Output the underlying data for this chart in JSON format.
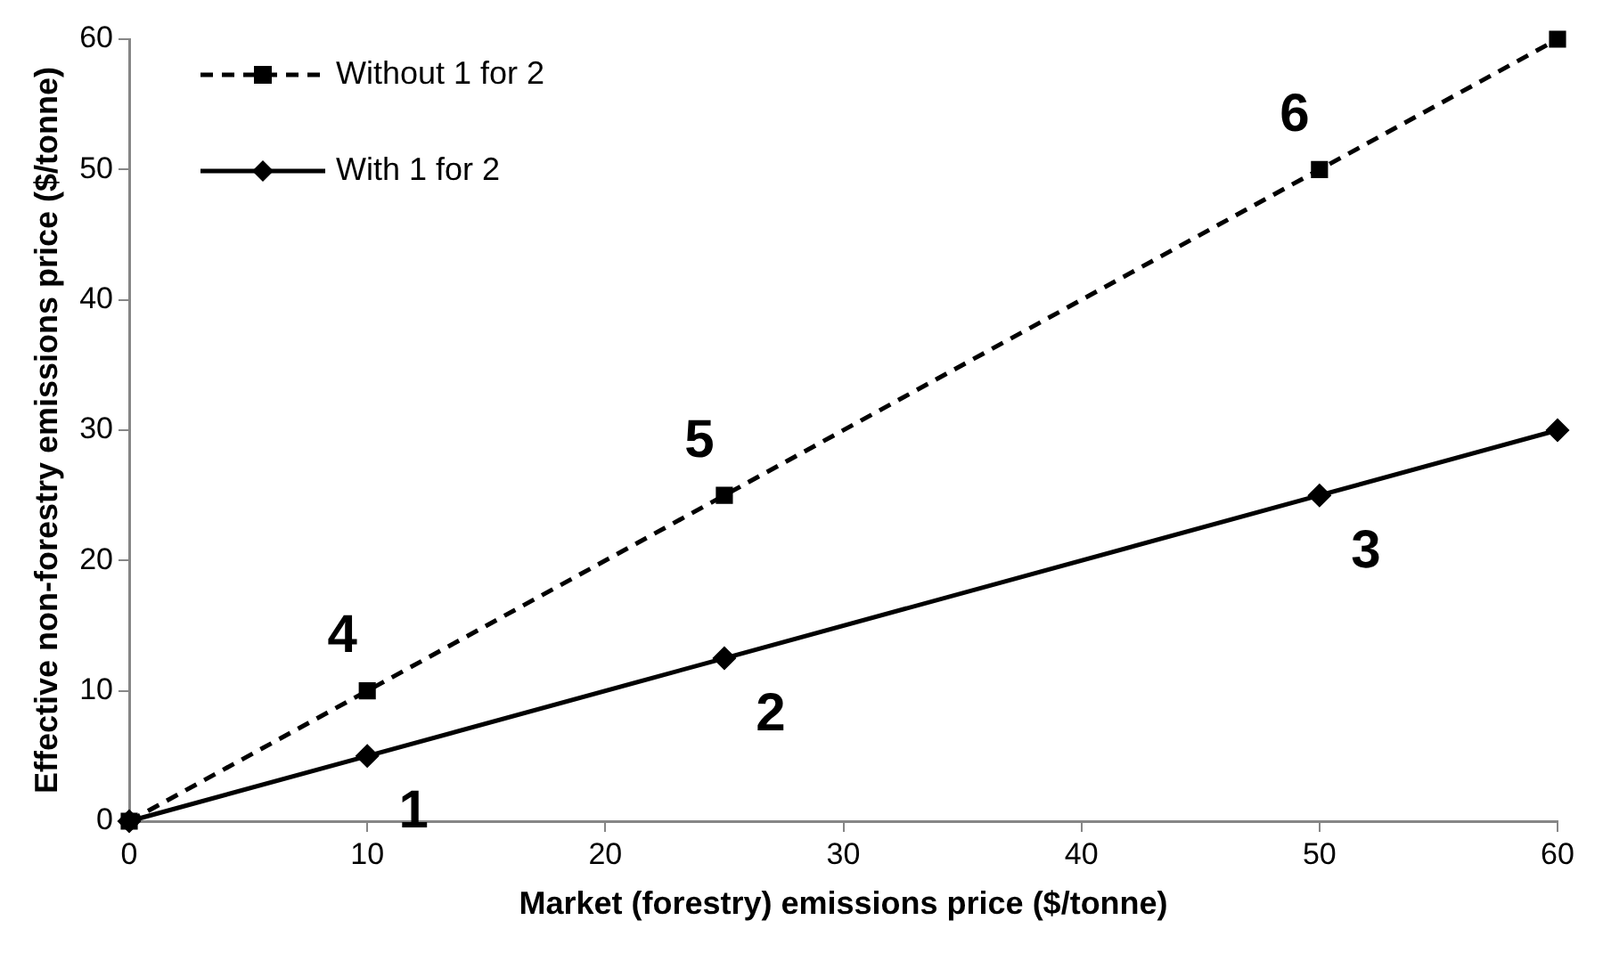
{
  "chart_data": {
    "type": "line",
    "xlabel": "Market (forestry) emissions price ($/tonne)",
    "ylabel": "Effective non-forestry emissions price ($/tonne)",
    "x": [
      0,
      10,
      25,
      50,
      60
    ],
    "series": [
      {
        "name": "Without 1 for 2",
        "color": "#000000",
        "values": [
          0,
          10,
          25,
          50,
          60
        ],
        "marker": "square",
        "line_style": "dashed"
      },
      {
        "name": "With 1 for 2",
        "color": "#000000",
        "values": [
          0,
          5,
          12.5,
          25,
          30
        ],
        "marker": "diamond",
        "line_style": "solid"
      }
    ],
    "xlim": [
      0,
      60
    ],
    "xticks": [
      0,
      10,
      20,
      30,
      40,
      50,
      60
    ],
    "ylim": [
      0,
      60
    ],
    "yticks": [
      0,
      10,
      20,
      30,
      40,
      50,
      60
    ],
    "grid": false,
    "legend": "top left",
    "annotations": [
      {
        "text": "1",
        "x": 10,
        "y": 5
      },
      {
        "text": "2",
        "x": 25,
        "y": 12.5
      },
      {
        "text": "3",
        "x": 50,
        "y": 25
      },
      {
        "text": "4",
        "x": 10,
        "y": 10
      },
      {
        "text": "5",
        "x": 25,
        "y": 25
      },
      {
        "text": "6",
        "x": 50,
        "y": 50
      }
    ]
  }
}
